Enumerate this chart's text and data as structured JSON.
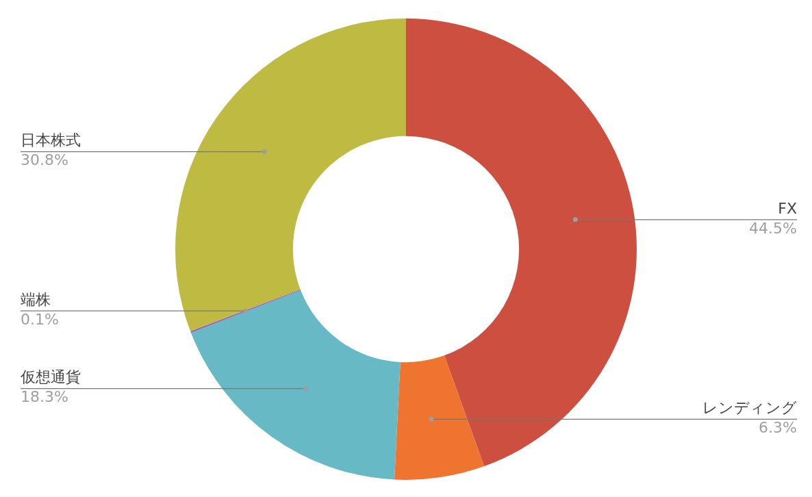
{
  "chart_data": {
    "type": "donut",
    "categories": [
      "FX",
      "レンディング",
      "仮想通貨",
      "端株",
      "日本株式"
    ],
    "values": [
      44.5,
      6.3,
      18.3,
      0.1,
      30.8
    ],
    "colors": [
      "#cd4f3f",
      "#ee7430",
      "#67bac5",
      "#9c4fc4",
      "#bfba42"
    ],
    "value_labels": [
      "44.5%",
      "6.3%",
      "18.3%",
      "0.1%",
      "30.8%"
    ],
    "legend": false
  }
}
